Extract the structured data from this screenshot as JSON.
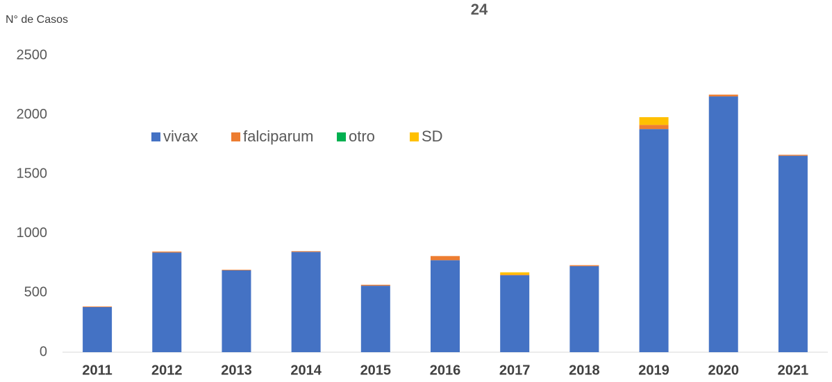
{
  "chart_data": {
    "type": "stacked-bar",
    "title": "24",
    "y_label": "N° de Casos",
    "categories": [
      "2011",
      "2012",
      "2013",
      "2014",
      "2015",
      "2016",
      "2017",
      "2018",
      "2019",
      "2020",
      "2021"
    ],
    "series": [
      {
        "name": "vivax",
        "color": "#4472c4",
        "values": [
          380,
          840,
          690,
          845,
          560,
          775,
          648,
          725,
          1880,
          2155,
          1655
        ]
      },
      {
        "name": "falciparum",
        "color": "#ed7d31",
        "values": [
          5,
          8,
          5,
          6,
          8,
          35,
          5,
          8,
          35,
          15,
          8
        ]
      },
      {
        "name": "otro",
        "color": "#00b050",
        "values": [
          0,
          0,
          0,
          0,
          0,
          0,
          0,
          0,
          0,
          0,
          0
        ]
      },
      {
        "name": "SD",
        "color": "#ffc000",
        "values": [
          0,
          0,
          0,
          0,
          0,
          0,
          20,
          0,
          65,
          0,
          0
        ]
      }
    ],
    "ylim": [
      0,
      2500
    ],
    "yticks": [
      0,
      500,
      1000,
      1500,
      2000,
      2500
    ],
    "grid": false
  }
}
